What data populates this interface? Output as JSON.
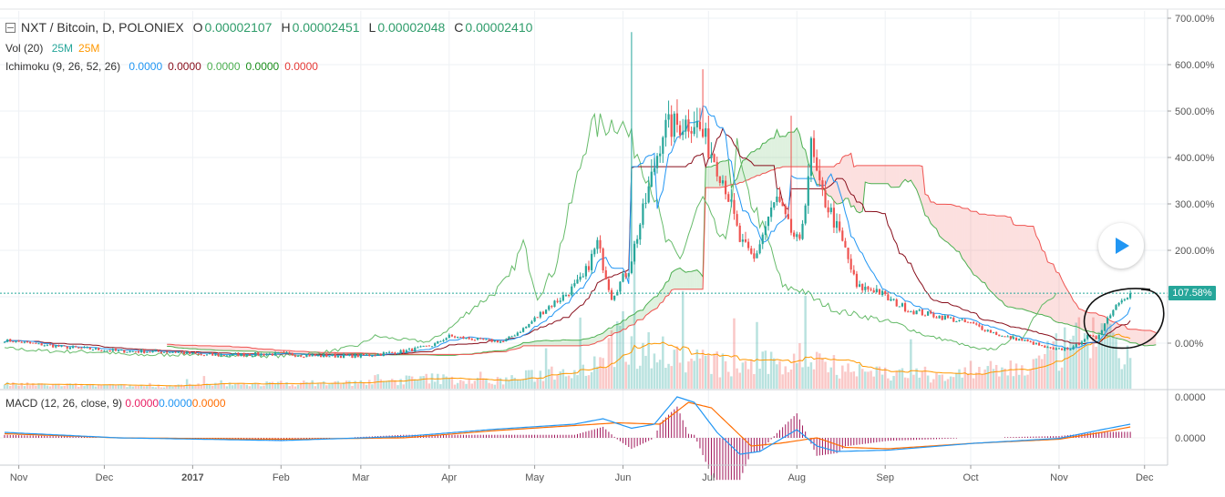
{
  "header": {
    "symbol": "NXT / Bitcoin, D, POLONIEX",
    "ohlc": [
      {
        "k": "O",
        "v": "0.00002107"
      },
      {
        "k": "H",
        "v": "0.00002451"
      },
      {
        "k": "L",
        "v": "0.00002048"
      },
      {
        "k": "C",
        "v": "0.00002410"
      }
    ]
  },
  "legend": {
    "vol": {
      "label": "Vol (20)",
      "values": [
        {
          "text": "25M",
          "color": "#26a69a"
        },
        {
          "text": "25M",
          "color": "#ff9800"
        }
      ]
    },
    "ichimoku": {
      "label": "Ichimoku (9, 26, 52, 26)",
      "values": [
        {
          "text": "0.0000",
          "color": "#2196f3"
        },
        {
          "text": "0.0000",
          "color": "#880e1b"
        },
        {
          "text": "0.0000",
          "color": "#4caf50"
        },
        {
          "text": "0.0000",
          "color": "#1b8e1b"
        },
        {
          "text": "0.0000",
          "color": "#e53935"
        }
      ]
    },
    "macd": {
      "label": "MACD (12, 26, close, 9)",
      "values": [
        {
          "text": "0.0000",
          "color": "#e91e63"
        },
        {
          "text": "0.0000",
          "color": "#2196f3"
        },
        {
          "text": "0.0000",
          "color": "#ff6d00"
        }
      ]
    }
  },
  "colors": {
    "up": "#26a69a",
    "down": "#ef5350",
    "tenkan": "#2196f3",
    "kijun": "#880e1b",
    "chikou": "#66bb6a",
    "cloud_bull": "#4caf50",
    "cloud_bear": "#ef5350",
    "macd_line": "#2196f3",
    "signal_line": "#ff6d00",
    "histogram": "#a0165a",
    "last_price": "#26a69a"
  },
  "last_price_label": "107.58%",
  "chart_data": [
    {
      "type": "candlestick",
      "title": "NXT / Bitcoin, D, POLONIEX",
      "y_scale": "percent",
      "y_ticks": [
        "700.00%",
        "600.00%",
        "500.00%",
        "400.00%",
        "300.00%",
        "200.00%",
        "100.00%",
        "0.00%"
      ],
      "y_tick_values": [
        700,
        600,
        500,
        400,
        300,
        200,
        100,
        0
      ],
      "ylim": [
        -60,
        700
      ],
      "x_ticks": [
        "Nov",
        "Dec",
        "2017",
        "Feb",
        "Mar",
        "Apr",
        "May",
        "Jun",
        "Jul",
        "Aug",
        "Sep",
        "Oct",
        "Nov",
        "Dec"
      ],
      "x_tick_days": [
        5,
        35,
        66,
        97,
        125,
        156,
        186,
        217,
        247,
        278,
        309,
        339,
        370,
        400
      ],
      "last_value": 107.58,
      "close_path": [
        [
          0,
          6
        ],
        [
          20,
          -8
        ],
        [
          40,
          -17
        ],
        [
          60,
          -19
        ],
        [
          70,
          -26
        ],
        [
          97,
          -23
        ],
        [
          110,
          -27
        ],
        [
          125,
          -27
        ],
        [
          140,
          -18
        ],
        [
          150,
          -5
        ],
        [
          156,
          15
        ],
        [
          165,
          8
        ],
        [
          175,
          3
        ],
        [
          183,
          35
        ],
        [
          190,
          75
        ],
        [
          197,
          105
        ],
        [
          203,
          140
        ],
        [
          208,
          215
        ],
        [
          213,
          100
        ],
        [
          219,
          160
        ],
        [
          226,
          330
        ],
        [
          231,
          460
        ],
        [
          236,
          470
        ],
        [
          242,
          480
        ],
        [
          249,
          400
        ],
        [
          253,
          340
        ],
        [
          258,
          220
        ],
        [
          263,
          180
        ],
        [
          268,
          270
        ],
        [
          271,
          310
        ],
        [
          275,
          250
        ],
        [
          279,
          210
        ],
        [
          283,
          420
        ],
        [
          286,
          330
        ],
        [
          290,
          280
        ],
        [
          295,
          200
        ],
        [
          299,
          120
        ],
        [
          306,
          115
        ],
        [
          310,
          95
        ],
        [
          318,
          70
        ],
        [
          330,
          55
        ],
        [
          340,
          40
        ],
        [
          350,
          15
        ],
        [
          358,
          5
        ],
        [
          368,
          -15
        ],
        [
          375,
          -10
        ],
        [
          380,
          15
        ],
        [
          383,
          10
        ],
        [
          388,
          65
        ],
        [
          392,
          100
        ],
        [
          395,
          108
        ]
      ],
      "volume_path": [
        [
          0,
          5
        ],
        [
          50,
          3
        ],
        [
          97,
          6
        ],
        [
          130,
          7
        ],
        [
          150,
          12
        ],
        [
          170,
          8
        ],
        [
          186,
          15
        ],
        [
          205,
          30
        ],
        [
          217,
          55
        ],
        [
          228,
          45
        ],
        [
          240,
          35
        ],
        [
          255,
          25
        ],
        [
          275,
          30
        ],
        [
          282,
          40
        ],
        [
          300,
          20
        ],
        [
          330,
          15
        ],
        [
          360,
          25
        ],
        [
          380,
          60
        ],
        [
          395,
          40
        ]
      ],
      "volume_max": 85,
      "tenkan_lag_days": 1,
      "kijun_lag_days": 4,
      "chikou_shift_days": 26,
      "cloud_shift_days": 26
    },
    {
      "type": "line",
      "title": "MACD (12, 26, close, 9)",
      "y_ticks": [
        "0.0000",
        "0.0000"
      ],
      "macd_path": [
        [
          0,
          0.2
        ],
        [
          40,
          0.0
        ],
        [
          97,
          -0.1
        ],
        [
          140,
          0.05
        ],
        [
          170,
          0.3
        ],
        [
          200,
          0.5
        ],
        [
          210,
          0.7
        ],
        [
          220,
          0.35
        ],
        [
          228,
          0.5
        ],
        [
          236,
          1.5
        ],
        [
          242,
          1.3
        ],
        [
          250,
          0.2
        ],
        [
          258,
          -0.6
        ],
        [
          265,
          -0.5
        ],
        [
          278,
          0.3
        ],
        [
          285,
          -0.3
        ],
        [
          292,
          -0.5
        ],
        [
          310,
          -0.45
        ],
        [
          340,
          -0.2
        ],
        [
          370,
          -0.02
        ],
        [
          385,
          0.3
        ],
        [
          395,
          0.5
        ]
      ],
      "signal_path": [
        [
          0,
          0.15
        ],
        [
          40,
          0.0
        ],
        [
          97,
          -0.05
        ],
        [
          140,
          0.0
        ],
        [
          170,
          0.25
        ],
        [
          200,
          0.45
        ],
        [
          215,
          0.55
        ],
        [
          230,
          0.5
        ],
        [
          240,
          1.3
        ],
        [
          248,
          1.1
        ],
        [
          256,
          0.3
        ],
        [
          262,
          -0.3
        ],
        [
          272,
          -0.2
        ],
        [
          285,
          0.0
        ],
        [
          295,
          -0.35
        ],
        [
          310,
          -0.4
        ],
        [
          340,
          -0.2
        ],
        [
          370,
          -0.05
        ],
        [
          385,
          0.2
        ],
        [
          395,
          0.4
        ]
      ]
    }
  ]
}
